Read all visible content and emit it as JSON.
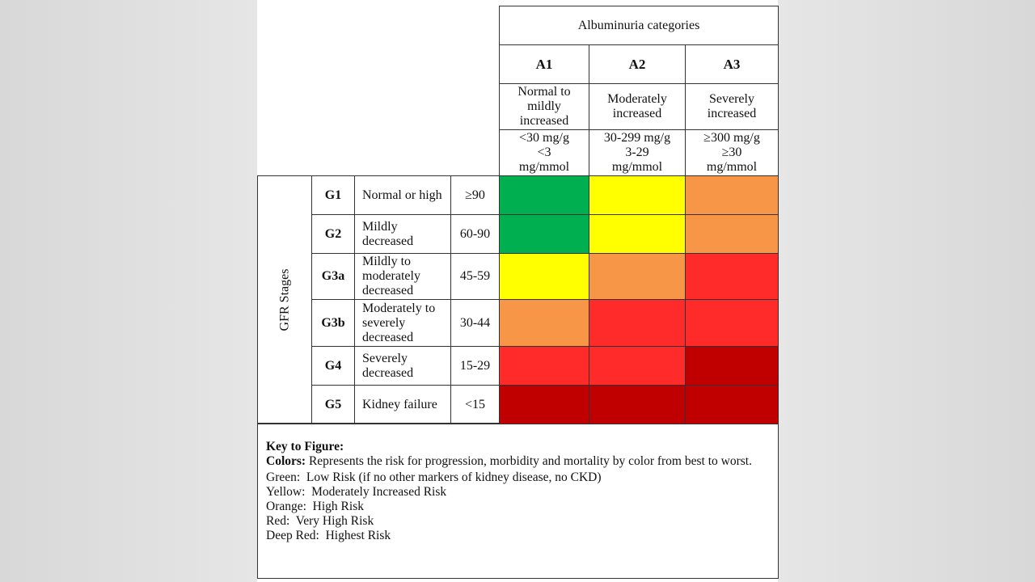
{
  "header": {
    "title": "Albuminuria categories",
    "columns": [
      {
        "code": "A1",
        "description": "Normal to mildly increased",
        "range": [
          "<30 mg/g",
          "<3",
          "mg/mmol"
        ]
      },
      {
        "code": "A2",
        "description": "Moderately increased",
        "range": [
          "30-299 mg/g",
          "3-29",
          "mg/mmol"
        ]
      },
      {
        "code": "A3",
        "description": "Severely increased",
        "range": [
          "≥300 mg/g",
          "≥30",
          "mg/mmol"
        ]
      }
    ]
  },
  "side_label": "GFR Stages",
  "rows": [
    {
      "stage": "G1",
      "description": "Normal or high",
      "range": "≥90",
      "colors": [
        "#00b050",
        "#ffff00",
        "#f79646"
      ]
    },
    {
      "stage": "G2",
      "description": "Mildly decreased",
      "range": "60-90",
      "colors": [
        "#00b050",
        "#ffff00",
        "#f79646"
      ]
    },
    {
      "stage": "G3a",
      "description": "Mildly to moderately decreased",
      "range": "45-59",
      "colors": [
        "#ffff00",
        "#f79646",
        "#ff2a2a"
      ]
    },
    {
      "stage": "G3b",
      "description": "Moderately to severely decreased",
      "range": "30-44",
      "colors": [
        "#f79646",
        "#ff2a2a",
        "#ff2a2a"
      ]
    },
    {
      "stage": "G4",
      "description": "Severely decreased",
      "range": "15-29",
      "colors": [
        "#ff2a2a",
        "#ff2a2a",
        "#c00000"
      ]
    },
    {
      "stage": "G5",
      "description": "Kidney failure",
      "range": "<15",
      "colors": [
        "#c00000",
        "#c00000",
        "#c00000"
      ]
    }
  ],
  "key": {
    "title": "Key to Figure:",
    "colors_label": "Colors:",
    "colors_text": "Represents the risk for progression, morbidity and mortality by color from best to worst.",
    "items": [
      "Green:  Low Risk (if no other markers of kidney disease, no CKD)",
      "Yellow:  Moderately Increased Risk",
      "Orange:  High Risk",
      "Red:  Very High Risk",
      "Deep Red:  Highest Risk"
    ]
  }
}
